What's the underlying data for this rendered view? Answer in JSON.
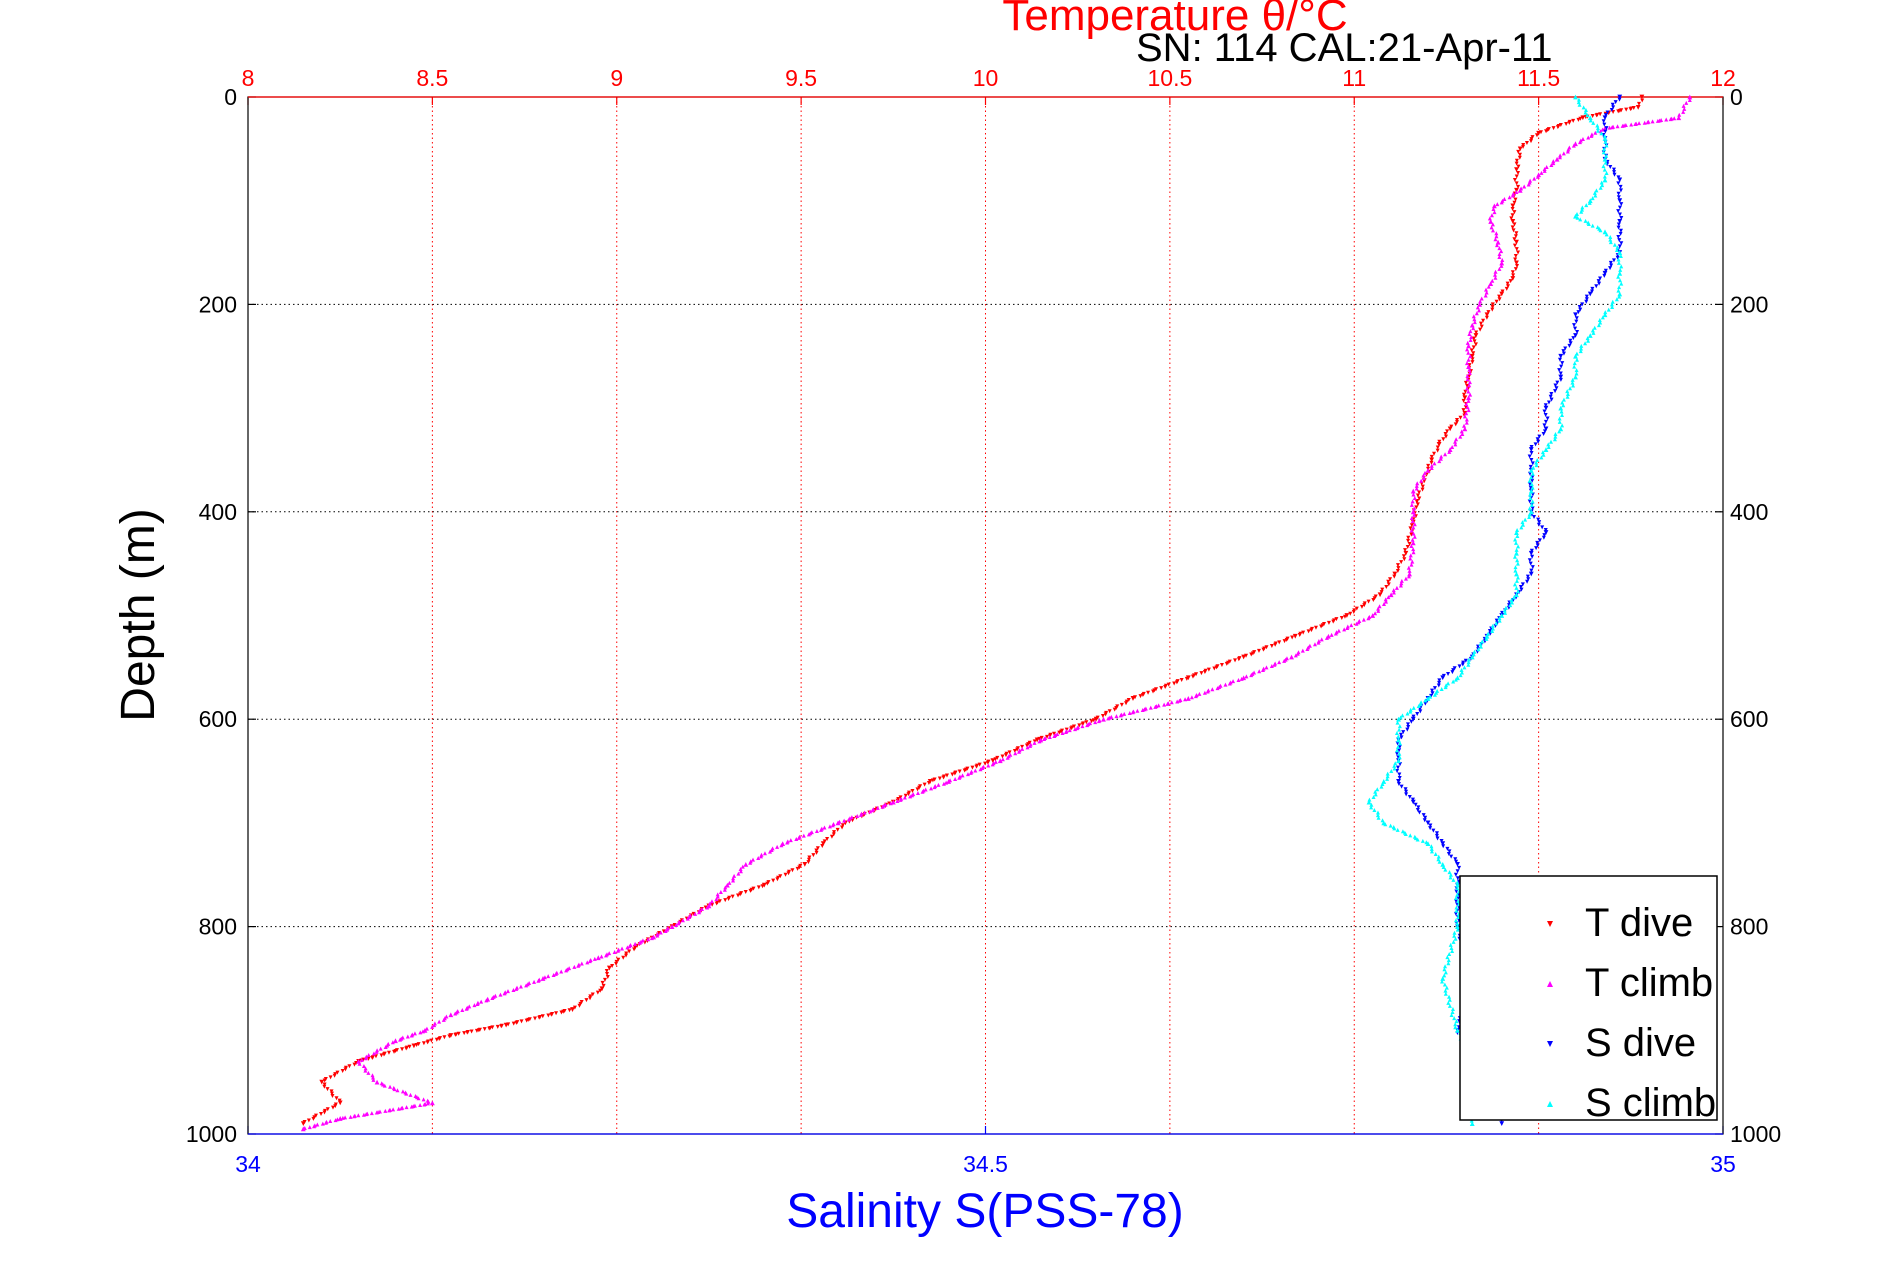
{
  "chart_data": {
    "type": "scatter",
    "title": "Temperature θ/°C",
    "subtitle": "SN: 114  CAL:21-Apr-11",
    "ylabel": "Depth (m)",
    "xlabel": "Salinity S(PSS-78)",
    "top_axis": {
      "quantity": "temperature",
      "range": [
        8,
        12
      ],
      "ticks": [
        "8",
        "8.5",
        "9",
        "9.5",
        "10",
        "10.5",
        "11",
        "11.5",
        "12"
      ],
      "color": "#ff0000",
      "grid": true
    },
    "bottom_axis": {
      "quantity": "salinity",
      "range": [
        34,
        35
      ],
      "ticks": [
        "34",
        "34.5",
        "35"
      ],
      "color": "#0000ff"
    },
    "y_axis": {
      "range": [
        0,
        1000
      ],
      "reversed": true,
      "ticks": [
        "0",
        "200",
        "400",
        "600",
        "800",
        "1000"
      ],
      "grid": true
    },
    "legend": {
      "placement": "bottom-right",
      "entries": [
        "T dive",
        "T climb",
        "S dive",
        "S climb"
      ]
    },
    "series": [
      {
        "name": "T dive",
        "axis": "temperature",
        "color": "#ff0000",
        "marker": "triangle-down",
        "points": [
          [
            11.78,
            0
          ],
          [
            11.77,
            10
          ],
          [
            11.62,
            20
          ],
          [
            11.5,
            35
          ],
          [
            11.45,
            50
          ],
          [
            11.44,
            70
          ],
          [
            11.44,
            90
          ],
          [
            11.43,
            105
          ],
          [
            11.43,
            120
          ],
          [
            11.44,
            140
          ],
          [
            11.44,
            160
          ],
          [
            11.43,
            175
          ],
          [
            11.4,
            190
          ],
          [
            11.36,
            210
          ],
          [
            11.33,
            230
          ],
          [
            11.32,
            250
          ],
          [
            11.31,
            270
          ],
          [
            11.3,
            290
          ],
          [
            11.3,
            305
          ],
          [
            11.26,
            320
          ],
          [
            11.23,
            335
          ],
          [
            11.21,
            350
          ],
          [
            11.19,
            370
          ],
          [
            11.17,
            390
          ],
          [
            11.16,
            410
          ],
          [
            11.14,
            440
          ],
          [
            11.11,
            460
          ],
          [
            11.07,
            480
          ],
          [
            10.98,
            500
          ],
          [
            10.84,
            520
          ],
          [
            10.7,
            540
          ],
          [
            10.55,
            560
          ],
          [
            10.4,
            580
          ],
          [
            10.3,
            600
          ],
          [
            10.14,
            620
          ],
          [
            10.02,
            640
          ],
          [
            9.85,
            660
          ],
          [
            9.75,
            680
          ],
          [
            9.62,
            700
          ],
          [
            9.56,
            720
          ],
          [
            9.51,
            740
          ],
          [
            9.4,
            760
          ],
          [
            9.25,
            780
          ],
          [
            9.15,
            800
          ],
          [
            9.05,
            820
          ],
          [
            8.98,
            840
          ],
          [
            8.96,
            860
          ],
          [
            8.88,
            880
          ],
          [
            8.7,
            895
          ],
          [
            8.55,
            905
          ],
          [
            8.45,
            915
          ],
          [
            8.3,
            930
          ],
          [
            8.2,
            950
          ],
          [
            8.25,
            970
          ],
          [
            8.15,
            990
          ]
        ]
      },
      {
        "name": "T climb",
        "axis": "temperature",
        "color": "#ff00ff",
        "marker": "triangle-up",
        "points": [
          [
            11.91,
            0
          ],
          [
            11.88,
            20
          ],
          [
            11.68,
            30
          ],
          [
            11.6,
            45
          ],
          [
            11.55,
            60
          ],
          [
            11.5,
            75
          ],
          [
            11.45,
            90
          ],
          [
            11.38,
            105
          ],
          [
            11.37,
            120
          ],
          [
            11.39,
            140
          ],
          [
            11.4,
            160
          ],
          [
            11.37,
            180
          ],
          [
            11.34,
            200
          ],
          [
            11.32,
            220
          ],
          [
            11.31,
            240
          ],
          [
            11.31,
            260
          ],
          [
            11.31,
            290
          ],
          [
            11.3,
            320
          ],
          [
            11.26,
            340
          ],
          [
            11.2,
            360
          ],
          [
            11.16,
            380
          ],
          [
            11.16,
            400
          ],
          [
            11.16,
            430
          ],
          [
            11.15,
            460
          ],
          [
            11.1,
            480
          ],
          [
            11.05,
            500
          ],
          [
            10.93,
            520
          ],
          [
            10.83,
            540
          ],
          [
            10.7,
            560
          ],
          [
            10.55,
            580
          ],
          [
            10.32,
            600
          ],
          [
            10.15,
            620
          ],
          [
            10.04,
            640
          ],
          [
            9.9,
            660
          ],
          [
            9.75,
            680
          ],
          [
            9.6,
            700
          ],
          [
            9.45,
            720
          ],
          [
            9.35,
            740
          ],
          [
            9.3,
            760
          ],
          [
            9.25,
            780
          ],
          [
            9.15,
            800
          ],
          [
            9.1,
            810
          ],
          [
            8.95,
            830
          ],
          [
            8.8,
            850
          ],
          [
            8.65,
            870
          ],
          [
            8.55,
            885
          ],
          [
            8.48,
            900
          ],
          [
            8.4,
            910
          ],
          [
            8.3,
            930
          ],
          [
            8.35,
            950
          ],
          [
            8.5,
            970
          ],
          [
            8.25,
            985
          ],
          [
            8.15,
            995
          ]
        ]
      },
      {
        "name": "S dive",
        "axis": "salinity",
        "color": "#0000ff",
        "marker": "triangle-down",
        "points": [
          [
            34.93,
            0
          ],
          [
            34.92,
            20
          ],
          [
            34.92,
            40
          ],
          [
            34.92,
            60
          ],
          [
            34.93,
            80
          ],
          [
            34.93,
            100
          ],
          [
            34.93,
            120
          ],
          [
            34.93,
            150
          ],
          [
            34.92,
            170
          ],
          [
            34.91,
            190
          ],
          [
            34.9,
            210
          ],
          [
            34.9,
            230
          ],
          [
            34.89,
            250
          ],
          [
            34.89,
            270
          ],
          [
            34.88,
            300
          ],
          [
            34.88,
            320
          ],
          [
            34.87,
            340
          ],
          [
            34.87,
            360
          ],
          [
            34.87,
            380
          ],
          [
            34.87,
            400
          ],
          [
            34.88,
            420
          ],
          [
            34.87,
            440
          ],
          [
            34.87,
            460
          ],
          [
            34.86,
            480
          ],
          [
            34.85,
            500
          ],
          [
            34.84,
            520
          ],
          [
            34.83,
            540
          ],
          [
            34.81,
            560
          ],
          [
            34.8,
            580
          ],
          [
            34.79,
            600
          ],
          [
            34.78,
            620
          ],
          [
            34.78,
            640
          ],
          [
            34.78,
            660
          ],
          [
            34.79,
            680
          ],
          [
            34.8,
            700
          ],
          [
            34.81,
            720
          ],
          [
            34.82,
            740
          ],
          [
            34.82,
            760
          ],
          [
            34.82,
            800
          ],
          [
            34.83,
            850
          ],
          [
            34.82,
            900
          ],
          [
            34.84,
            950
          ],
          [
            34.85,
            990
          ]
        ]
      },
      {
        "name": "S climb",
        "axis": "salinity",
        "color": "#00ffff",
        "marker": "triangle-up",
        "points": [
          [
            34.9,
            0
          ],
          [
            34.91,
            20
          ],
          [
            34.92,
            40
          ],
          [
            34.92,
            60
          ],
          [
            34.92,
            80
          ],
          [
            34.91,
            100
          ],
          [
            34.9,
            115
          ],
          [
            34.92,
            130
          ],
          [
            34.93,
            150
          ],
          [
            34.93,
            170
          ],
          [
            34.93,
            190
          ],
          [
            34.92,
            210
          ],
          [
            34.91,
            230
          ],
          [
            34.9,
            250
          ],
          [
            34.9,
            270
          ],
          [
            34.89,
            300
          ],
          [
            34.89,
            320
          ],
          [
            34.88,
            340
          ],
          [
            34.87,
            360
          ],
          [
            34.87,
            380
          ],
          [
            34.87,
            400
          ],
          [
            34.86,
            420
          ],
          [
            34.86,
            440
          ],
          [
            34.86,
            460
          ],
          [
            34.86,
            480
          ],
          [
            34.85,
            500
          ],
          [
            34.84,
            520
          ],
          [
            34.83,
            540
          ],
          [
            34.82,
            560
          ],
          [
            34.8,
            580
          ],
          [
            34.78,
            600
          ],
          [
            34.78,
            620
          ],
          [
            34.78,
            640
          ],
          [
            34.77,
            660
          ],
          [
            34.76,
            680
          ],
          [
            34.77,
            700
          ],
          [
            34.8,
            720
          ],
          [
            34.81,
            740
          ],
          [
            34.82,
            760
          ],
          [
            34.82,
            800
          ],
          [
            34.81,
            850
          ],
          [
            34.82,
            900
          ],
          [
            34.84,
            950
          ],
          [
            34.83,
            990
          ]
        ]
      }
    ]
  }
}
